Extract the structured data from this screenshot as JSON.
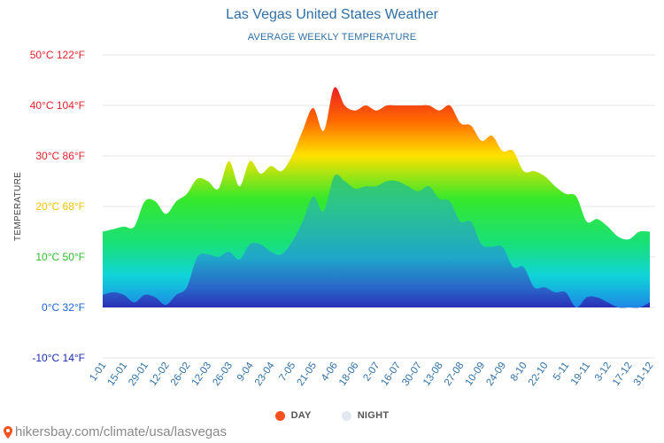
{
  "header": {
    "title": "Las Vegas United States Weather",
    "subtitle": "AVERAGE WEEKLY TEMPERATURE"
  },
  "colors": {
    "day": "#f4511e",
    "night": "#e3e8f0",
    "title": "#2f6fa6",
    "grid": "#e6e6e6"
  },
  "legend": {
    "day_label": "DAY",
    "night_label": "NIGHT"
  },
  "footer": {
    "source": "hikersbay.com/climate/usa/lasvegas"
  },
  "chart_data": {
    "type": "area",
    "title": "Las Vegas United States Weather",
    "subtitle": "AVERAGE WEEKLY TEMPERATURE",
    "ylabel": "TEMPERATURE",
    "xlabel": "",
    "ylim": [
      -10,
      50
    ],
    "yticks": [
      {
        "value": 50,
        "label": "50°C 122°F",
        "color": "#e8202a"
      },
      {
        "value": 40,
        "label": "40°C 104°F",
        "color": "#e8202a"
      },
      {
        "value": 30,
        "label": "30°C 86°F",
        "color": "#e8202a"
      },
      {
        "value": 20,
        "label": "20°C 68°F",
        "color": "#f5c400"
      },
      {
        "value": 10,
        "label": "10°C 50°F",
        "color": "#2bbf2b"
      },
      {
        "value": 0,
        "label": "0°C 32°F",
        "color": "#1f62d6"
      },
      {
        "value": -10,
        "label": "-10°C 14°F",
        "color": "#1a2bb0"
      }
    ],
    "x": [
      "1-01",
      "8-01",
      "15-01",
      "22-01",
      "29-01",
      "5-02",
      "12-02",
      "19-02",
      "26-02",
      "5-03",
      "12-03",
      "19-03",
      "26-03",
      "2-04",
      "9-04",
      "16-04",
      "23-04",
      "30-04",
      "7-05",
      "14-05",
      "21-05",
      "28-05",
      "4-06",
      "11-06",
      "18-06",
      "25-06",
      "2-07",
      "9-07",
      "16-07",
      "23-07",
      "30-07",
      "6-08",
      "13-08",
      "20-08",
      "27-08",
      "3-09",
      "10-09",
      "17-09",
      "24-09",
      "1-10",
      "8-10",
      "15-10",
      "22-10",
      "29-10",
      "5-11",
      "12-11",
      "19-11",
      "26-11",
      "3-12",
      "10-12",
      "17-12",
      "24-12",
      "31-12"
    ],
    "tick_labels": [
      "1-01",
      "15-01",
      "29-01",
      "12-02",
      "26-02",
      "12-03",
      "26-03",
      "9-04",
      "23-04",
      "7-05",
      "21-05",
      "4-06",
      "18-06",
      "2-07",
      "16-07",
      "30-07",
      "13-08",
      "27-08",
      "10-09",
      "24-09",
      "8-10",
      "22-10",
      "5-11",
      "19-11",
      "3-12",
      "17-12",
      "31-12"
    ],
    "series": [
      {
        "name": "DAY",
        "values": [
          15,
          15.5,
          16,
          16,
          21,
          21,
          18.5,
          21,
          22.5,
          25.5,
          25,
          23.5,
          29,
          24,
          29,
          26.5,
          28,
          27,
          30,
          35,
          39.5,
          35,
          43.5,
          40,
          39,
          40,
          39,
          40,
          40,
          40,
          40,
          40,
          39,
          40,
          36.5,
          36,
          33,
          34,
          31,
          31,
          27,
          27,
          26,
          24,
          22.5,
          22,
          17,
          17.5,
          16,
          14,
          13.5,
          15,
          15
        ]
      },
      {
        "name": "NIGHT",
        "values": [
          2.5,
          3,
          2.5,
          1,
          2.5,
          2,
          0.5,
          2.5,
          4,
          10,
          10.5,
          10,
          11,
          9.5,
          12.5,
          12.5,
          11,
          10.5,
          13,
          17,
          22,
          19,
          26,
          25,
          23.5,
          24,
          24,
          25,
          25,
          24,
          23,
          24,
          21.5,
          21,
          17,
          17,
          12.5,
          12,
          12,
          8,
          8,
          4,
          4,
          3,
          3,
          0,
          2,
          2,
          1,
          0,
          0,
          0,
          1
        ]
      }
    ]
  }
}
